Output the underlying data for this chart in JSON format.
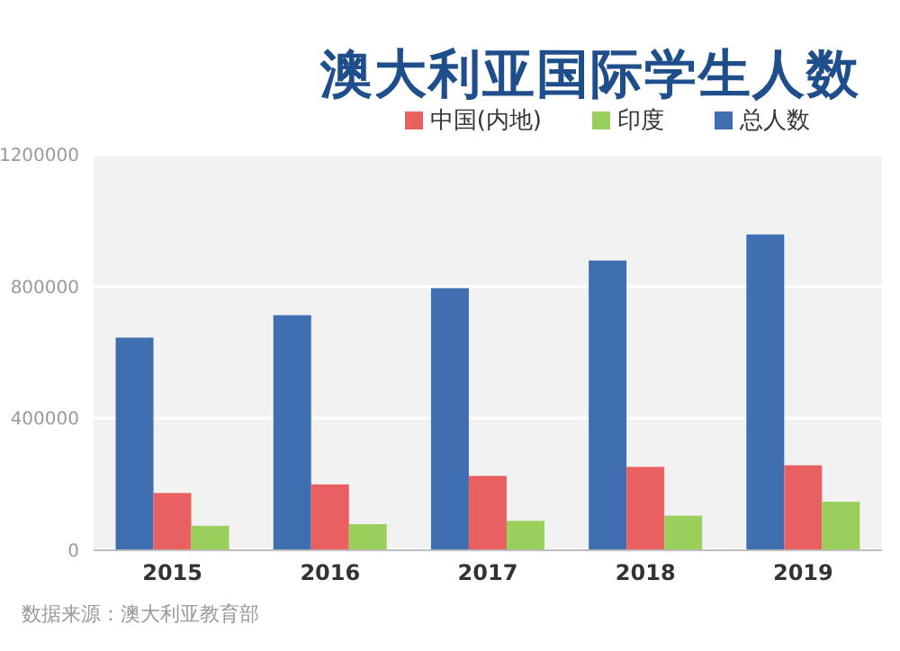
{
  "chart_data": {
    "type": "bar",
    "title": "澳大利亚国际学生人数",
    "categories": [
      "2015",
      "2016",
      "2017",
      "2018",
      "2019"
    ],
    "series": [
      {
        "name": "总人数",
        "color": "#3f6fb0",
        "values": [
          645000,
          713000,
          795000,
          879000,
          958000
        ]
      },
      {
        "name": "中国(内地)",
        "color": "#e8605f",
        "values": [
          174000,
          200000,
          226000,
          253000,
          258000
        ]
      },
      {
        "name": "印度",
        "color": "#9bcf5c",
        "values": [
          74000,
          79000,
          89000,
          105000,
          147000
        ]
      }
    ],
    "ylim": [
      0,
      1200000
    ],
    "yticks": [
      0,
      400000,
      800000,
      1200000
    ],
    "grid": "y",
    "legend": "top right",
    "annotations": [
      "数据来源：澳大利亚教育部"
    ]
  }
}
